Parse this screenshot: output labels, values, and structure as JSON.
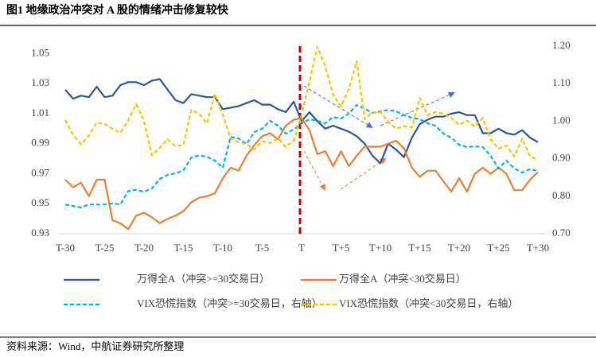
{
  "chart_data": {
    "type": "line",
    "title": "图1  地缘政治冲突对 A 股的情绪冲击修复较快",
    "source": "资料来源：Wind，中航证券研究所整理",
    "categories": [
      "T-30",
      null,
      null,
      null,
      null,
      "T-25",
      null,
      null,
      null,
      null,
      "T-20",
      null,
      null,
      null,
      null,
      "T-15",
      null,
      null,
      null,
      null,
      "T-10",
      null,
      null,
      null,
      null,
      "T-5",
      null,
      null,
      null,
      null,
      "T",
      null,
      null,
      null,
      null,
      "T+5",
      null,
      null,
      null,
      null,
      "T+10",
      null,
      null,
      null,
      null,
      "T+15",
      null,
      null,
      null,
      null,
      "T+20",
      null,
      null,
      null,
      null,
      "T+25",
      null,
      null,
      null,
      null,
      "T+30"
    ],
    "ylim": [
      0.93,
      1.055
    ],
    "yticks": [
      0.93,
      0.95,
      0.97,
      0.99,
      1.01,
      1.03,
      1.05
    ],
    "y2lim": [
      0.7,
      1.2
    ],
    "y2ticks": [
      {
        "value": 0.7,
        "label": "0.70"
      },
      {
        "value": 0.8,
        "label": "0.80"
      },
      {
        "value": 0.9,
        "label": "0.90"
      },
      {
        "value": 1.0,
        "label": "1.00"
      },
      {
        "value": 1.1,
        "label": "1.10"
      },
      {
        "value": 1.2,
        "label": "1.20"
      }
    ],
    "grid": false,
    "series": [
      {
        "name": "万得全A（冲突>=30交易日）",
        "color": "#2f5597",
        "dash": false,
        "values": [
          1.026,
          1.02,
          1.022,
          1.021,
          1.028,
          1.021,
          1.022,
          1.029,
          1.031,
          1.031,
          1.029,
          1.032,
          1.033,
          1.026,
          1.019,
          1.017,
          1.023,
          1.022,
          1.021,
          1.021,
          1.013,
          1.014,
          1.015,
          1.017,
          1.019,
          1.016,
          1.016,
          1.013,
          1.011,
          1.018,
          1.005,
          1.011,
          1.005,
          1.0,
          1.002,
          1.0,
          0.998,
          0.995,
          0.99,
          0.982,
          0.977,
          0.99,
          0.986,
          0.981,
          0.994,
          1.003,
          1.006,
          1.008,
          1.008,
          1.01,
          1.011,
          1.009,
          1.009,
          0.997,
          0.997,
          1.0,
          0.997,
          0.996,
          0.999,
          0.994,
          0.991
        ]
      },
      {
        "name": "万得全A（冲突<30交易日）",
        "color": "#ed7d31",
        "dash": false,
        "values": [
          0.966,
          0.961,
          0.964,
          0.955,
          0.966,
          0.966,
          0.939,
          0.937,
          0.933,
          0.942,
          0.944,
          0.941,
          0.937,
          0.94,
          0.942,
          0.945,
          0.951,
          0.954,
          0.955,
          0.957,
          0.967,
          0.974,
          0.972,
          0.982,
          0.989,
          0.995,
          0.997,
          0.993,
          1.002,
          1.006,
          1.007,
          0.999,
          0.983,
          0.985,
          0.975,
          0.985,
          0.975,
          0.982,
          0.988,
          0.988,
          0.988,
          0.99,
          0.992,
          0.987,
          0.974,
          0.968,
          0.972,
          0.972,
          0.965,
          0.958,
          0.967,
          0.958,
          0.97,
          0.974,
          0.97,
          0.974,
          0.97,
          0.959,
          0.959,
          0.966,
          0.971
        ]
      },
      {
        "name": "VIX恐慌指数（冲突>=30交易日，右轴）",
        "color": "#00b0f0",
        "dash": true,
        "axis": "y2",
        "values": [
          0.778,
          0.774,
          0.77,
          0.778,
          0.778,
          0.778,
          0.781,
          0.778,
          0.814,
          0.817,
          0.812,
          0.821,
          0.846,
          0.857,
          0.861,
          0.869,
          0.903,
          0.909,
          0.905,
          0.895,
          0.876,
          0.958,
          0.954,
          0.939,
          0.971,
          0.98,
          1.001,
          0.988,
          0.967,
          0.978,
          0.994,
          1.005,
          1.001,
          0.994,
          1.011,
          1.007,
          1.02,
          1.043,
          1.033,
          1.022,
          1.026,
          1.03,
          1.026,
          1.016,
          1.009,
          1.005,
          0.994,
          0.988,
          0.967,
          0.956,
          0.937,
          0.931,
          0.933,
          0.931,
          0.908,
          0.874,
          0.895,
          0.874,
          0.863,
          0.872,
          0.867
        ]
      },
      {
        "name": "VIX恐慌指数（冲突<30交易日，右轴）",
        "color": "#ffc000",
        "dash": true,
        "axis": "y2",
        "values": [
          1.003,
          0.963,
          0.939,
          0.961,
          0.997,
          0.992,
          0.98,
          0.969,
          1.003,
          1.045,
          1.001,
          0.909,
          0.929,
          0.952,
          0.933,
          0.937,
          1.03,
          1.02,
          0.994,
          1.073,
          1.016,
          0.954,
          0.944,
          0.939,
          0.925,
          0.946,
          0.942,
          0.954,
          0.931,
          0.948,
          1.016,
          1.105,
          1.198,
          1.147,
          1.071,
          1.039,
          1.086,
          1.16,
          1.005,
          1.024,
          1.024,
          0.999,
          0.98,
          0.986,
          0.984,
          1.062,
          1.016,
          1.024,
          1.02,
          1.009,
          0.99,
          1.001,
          0.986,
          1.009,
          0.952,
          0.927,
          0.935,
          0.906,
          0.954,
          0.906,
          0.897
        ]
      }
    ]
  }
}
